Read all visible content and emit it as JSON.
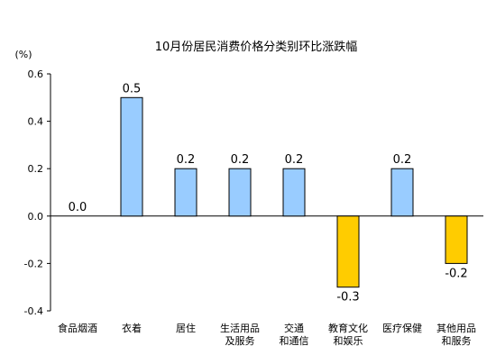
{
  "chart_data": {
    "type": "bar",
    "title": "10月份居民消费价格分类别环比涨跌幅",
    "ylabel": "(%)",
    "xlabel": "",
    "ylim": [
      -0.4,
      0.6
    ],
    "yticks": [
      "0.6",
      "0.4",
      "0.2",
      "0.0",
      "-0.2",
      "-0.4"
    ],
    "grid": false,
    "categories": [
      [
        "食品烟酒"
      ],
      [
        "衣着"
      ],
      [
        "居住"
      ],
      [
        "生活用品",
        "及服务"
      ],
      [
        "交通",
        "和通信"
      ],
      [
        "教育文化",
        "和娱乐"
      ],
      [
        "医疗保健"
      ],
      [
        "其他用品",
        "和服务"
      ]
    ],
    "values": [
      0.0,
      0.5,
      0.2,
      0.2,
      0.2,
      -0.3,
      0.2,
      -0.2
    ],
    "labels": [
      "0.0",
      "0.5",
      "0.2",
      "0.2",
      "0.2",
      "-0.3",
      "0.2",
      "-0.2"
    ],
    "colors": {
      "positive": "#99ccff",
      "negative": "#ffcc00",
      "outline": "#000000"
    }
  }
}
